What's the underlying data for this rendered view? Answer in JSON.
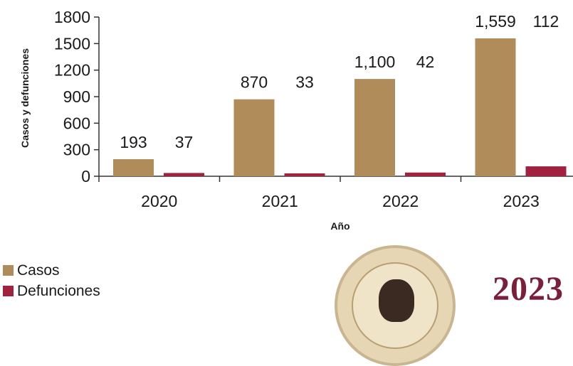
{
  "chart_data": {
    "type": "bar",
    "categories": [
      "2020",
      "2021",
      "2022",
      "2023"
    ],
    "series": [
      {
        "name": "Casos",
        "values": [
          193,
          870,
          1100,
          1559
        ],
        "labels": [
          "193",
          "870",
          "1,100",
          "1,559"
        ],
        "color": "#b08c5a"
      },
      {
        "name": "Defunciones",
        "values": [
          37,
          33,
          42,
          112
        ],
        "labels": [
          "37",
          "33",
          "42",
          "112"
        ],
        "color": "#a0223f"
      }
    ],
    "xlabel": "Año",
    "ylabel": "Casos y defunciones",
    "ylim": [
      0,
      1800
    ],
    "yticks": [
      0,
      300,
      600,
      900,
      1200,
      1500,
      1800
    ],
    "legend_position": "bottom-left",
    "grid": false
  },
  "logo": {
    "text": "2023"
  }
}
